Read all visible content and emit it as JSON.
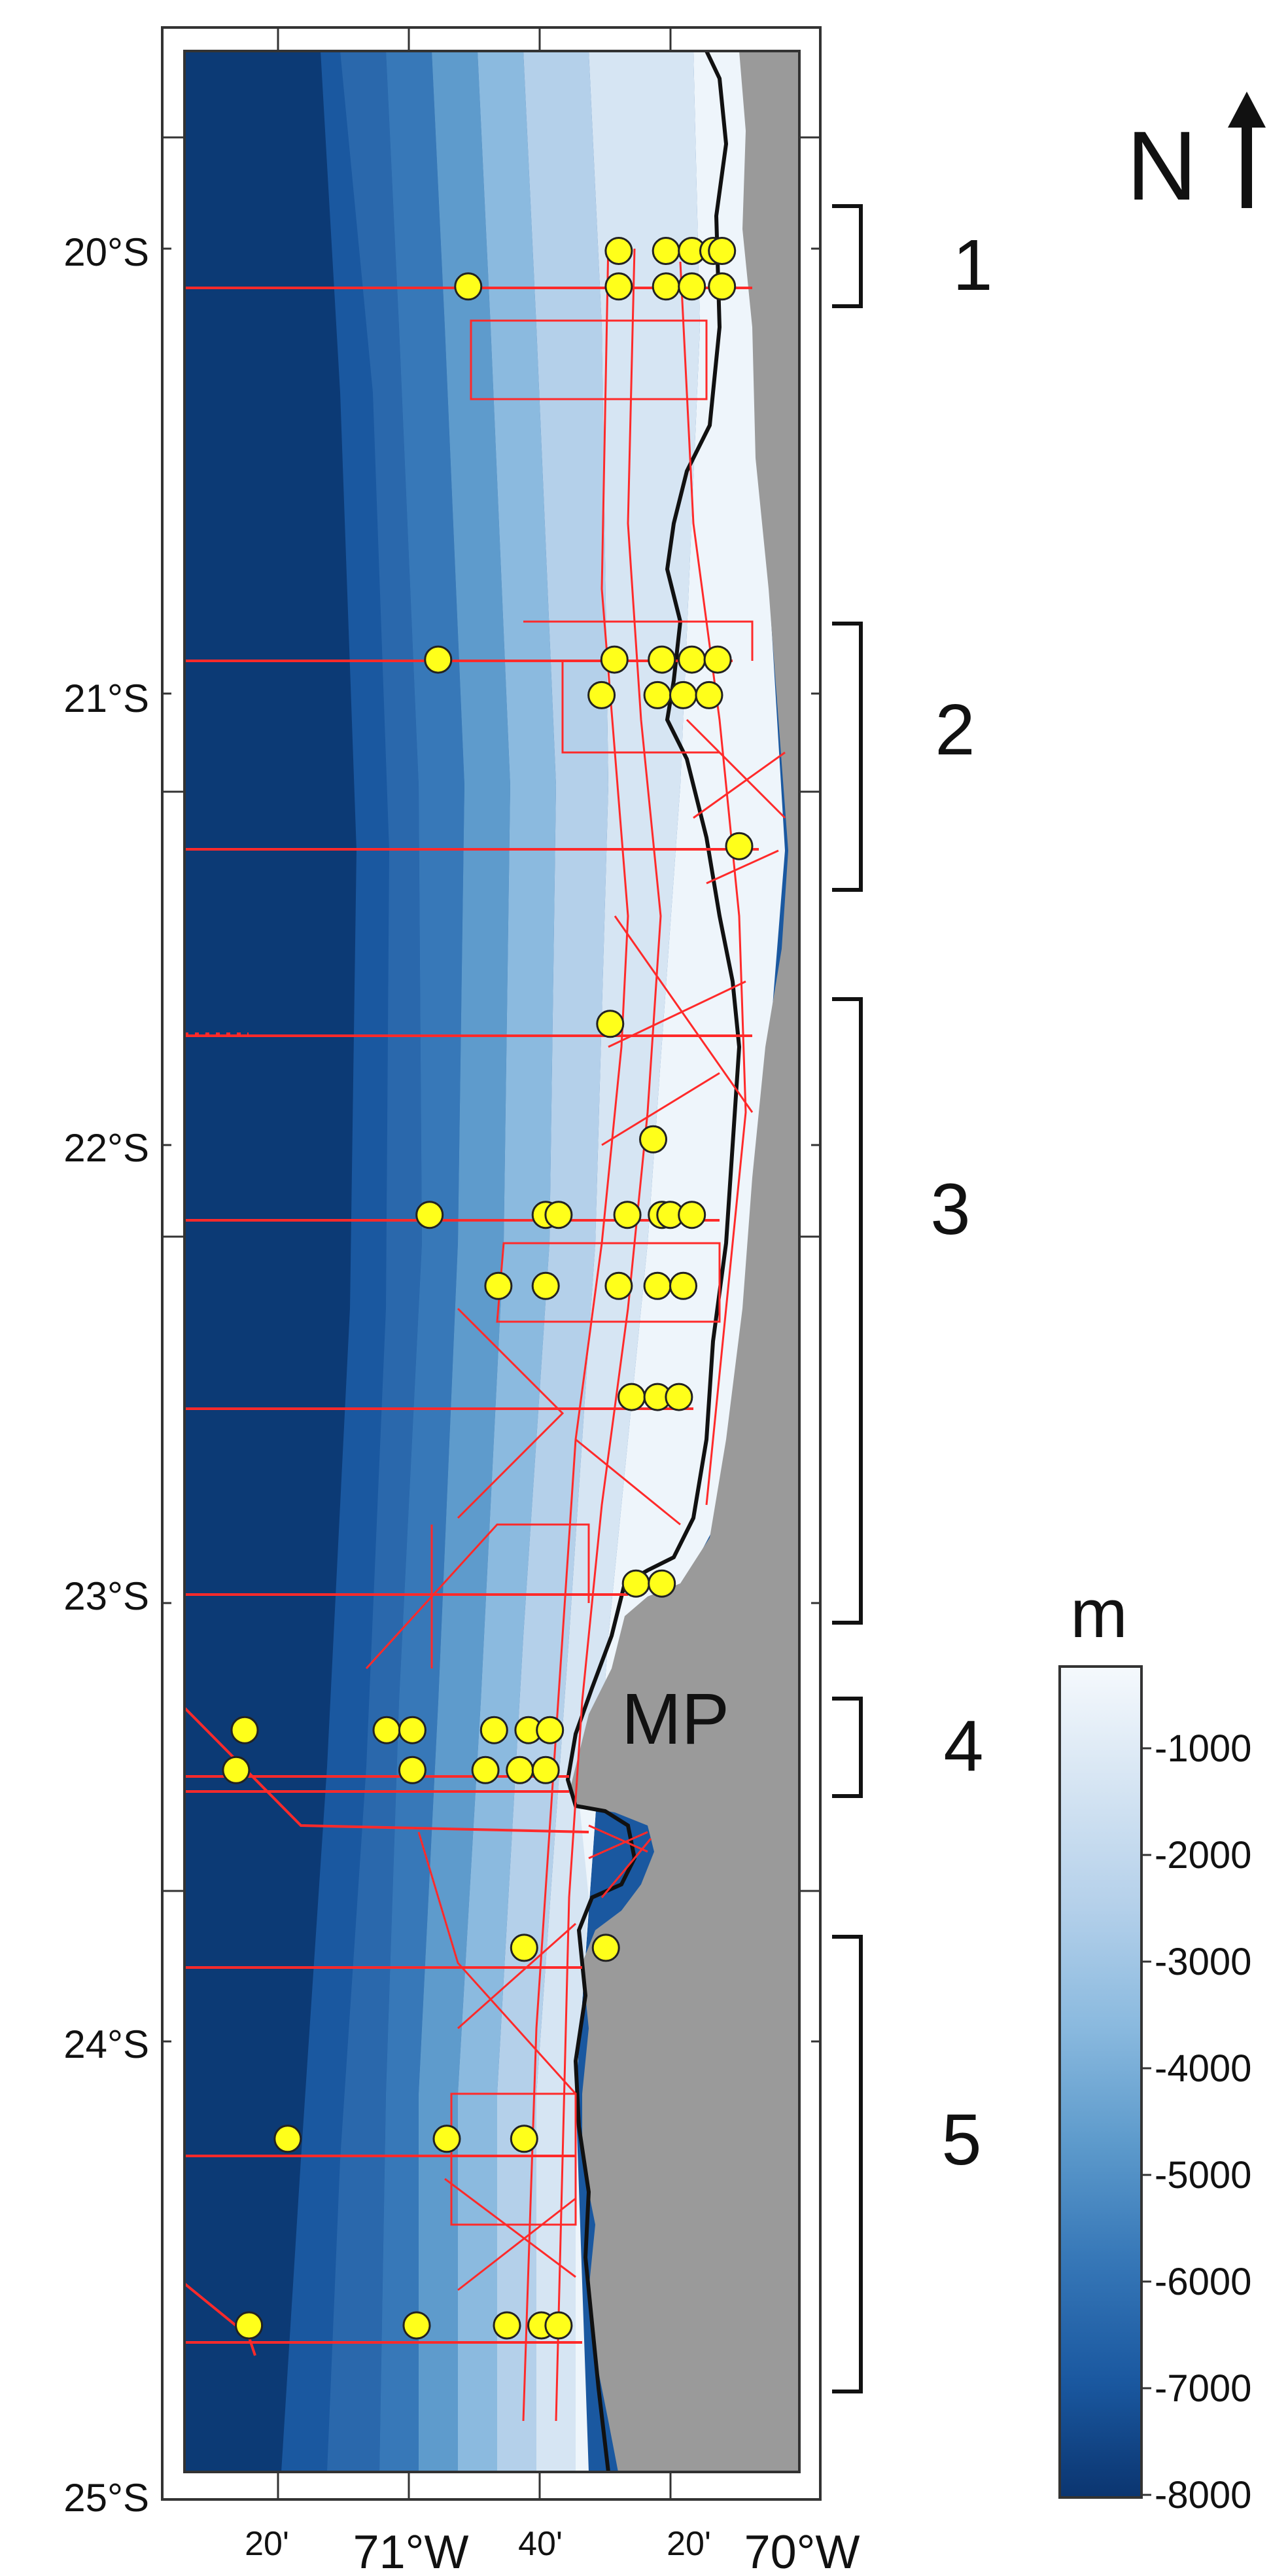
{
  "map": {
    "lat_labels": [
      "20°S",
      "21°S",
      "22°S",
      "23°S",
      "24°S",
      "25°S"
    ],
    "lon_labels": [
      "20'",
      "71°W",
      "40'",
      "20'",
      "70°W"
    ],
    "place_label": "MP",
    "north_label": "N",
    "zone_labels": [
      "1",
      "2",
      "3",
      "4",
      "5"
    ],
    "colors": {
      "land": "#9a9a9a",
      "coastline": "#111111",
      "ship_tracks": "#ff2a2a",
      "stations": "#ffff1a",
      "frame": "#333333"
    }
  },
  "colorbar": {
    "unit": "m",
    "tick_labels": [
      "-1000",
      "-2000",
      "-3000",
      "-4000",
      "-5000",
      "-6000",
      "-7000",
      "-8000"
    ],
    "colors": [
      "#f2f7fc",
      "#d6e5f3",
      "#b4d0ea",
      "#8bbadf",
      "#5e9bcc",
      "#3778b8",
      "#1a58a0",
      "#0c3a75"
    ]
  },
  "stations": [
    {
      "lat": -20.0,
      "lon": -70.46
    },
    {
      "lat": -20.0,
      "lon": -70.35
    },
    {
      "lat": -20.0,
      "lon": -70.29
    },
    {
      "lat": -20.0,
      "lon": -70.24
    },
    {
      "lat": -20.0,
      "lon": -70.22
    },
    {
      "lat": -20.08,
      "lon": -70.81
    },
    {
      "lat": -20.08,
      "lon": -70.46
    },
    {
      "lat": -20.08,
      "lon": -70.35
    },
    {
      "lat": -20.08,
      "lon": -70.29
    },
    {
      "lat": -20.08,
      "lon": -70.22
    },
    {
      "lat": -20.92,
      "lon": -70.88
    },
    {
      "lat": -20.92,
      "lon": -70.47
    },
    {
      "lat": -20.92,
      "lon": -70.36
    },
    {
      "lat": -20.92,
      "lon": -70.29
    },
    {
      "lat": -20.92,
      "lon": -70.23
    },
    {
      "lat": -21.0,
      "lon": -70.5
    },
    {
      "lat": -21.0,
      "lon": -70.37
    },
    {
      "lat": -21.0,
      "lon": -70.31
    },
    {
      "lat": -21.0,
      "lon": -70.25
    },
    {
      "lat": -21.34,
      "lon": -70.18
    },
    {
      "lat": -21.74,
      "lon": -70.48
    },
    {
      "lat": -22.0,
      "lon": -70.38
    },
    {
      "lat": -22.17,
      "lon": -70.9
    },
    {
      "lat": -22.17,
      "lon": -70.63
    },
    {
      "lat": -22.17,
      "lon": -70.6
    },
    {
      "lat": -22.17,
      "lon": -70.44
    },
    {
      "lat": -22.17,
      "lon": -70.36
    },
    {
      "lat": -22.17,
      "lon": -70.34
    },
    {
      "lat": -22.17,
      "lon": -70.29
    },
    {
      "lat": -22.33,
      "lon": -70.74
    },
    {
      "lat": -22.33,
      "lon": -70.63
    },
    {
      "lat": -22.33,
      "lon": -70.46
    },
    {
      "lat": -22.33,
      "lon": -70.37
    },
    {
      "lat": -22.33,
      "lon": -70.31
    },
    {
      "lat": -22.58,
      "lon": -70.43
    },
    {
      "lat": -22.58,
      "lon": -70.37
    },
    {
      "lat": -22.58,
      "lon": -70.32
    },
    {
      "lat": -23.0,
      "lon": -70.42
    },
    {
      "lat": -23.0,
      "lon": -70.36
    },
    {
      "lat": -23.33,
      "lon": -71.33
    },
    {
      "lat": -23.33,
      "lon": -71.0
    },
    {
      "lat": -23.33,
      "lon": -70.94
    },
    {
      "lat": -23.33,
      "lon": -70.75
    },
    {
      "lat": -23.33,
      "lon": -70.67
    },
    {
      "lat": -23.33,
      "lon": -70.62
    },
    {
      "lat": -23.42,
      "lon": -71.35
    },
    {
      "lat": -23.42,
      "lon": -70.94
    },
    {
      "lat": -23.42,
      "lon": -70.77
    },
    {
      "lat": -23.42,
      "lon": -70.69
    },
    {
      "lat": -23.42,
      "lon": -70.63
    },
    {
      "lat": -23.82,
      "lon": -70.68
    },
    {
      "lat": -23.82,
      "lon": -70.49
    },
    {
      "lat": -24.25,
      "lon": -71.23
    },
    {
      "lat": -24.25,
      "lon": -70.86
    },
    {
      "lat": -24.25,
      "lon": -70.68
    },
    {
      "lat": -24.67,
      "lon": -71.32
    },
    {
      "lat": -24.67,
      "lon": -70.93
    },
    {
      "lat": -24.67,
      "lon": -70.72
    },
    {
      "lat": -24.67,
      "lon": -70.64
    },
    {
      "lat": -24.67,
      "lon": -70.6
    }
  ]
}
